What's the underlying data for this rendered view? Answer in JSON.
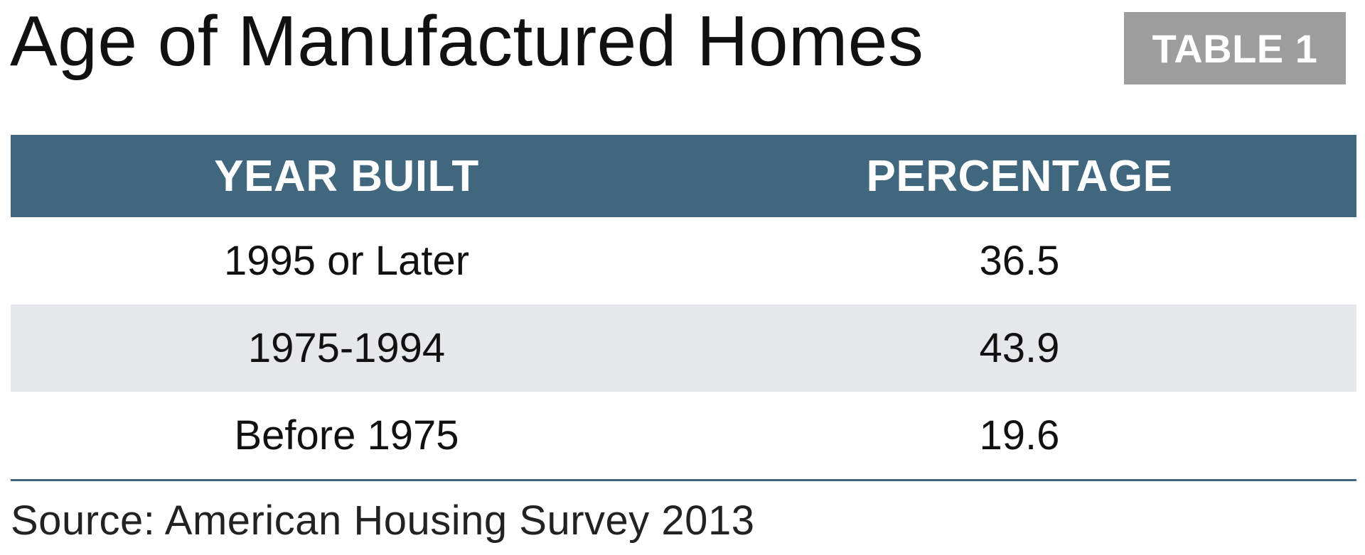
{
  "title": "Age of Manufactured Homes",
  "badge": "TABLE 1",
  "colors": {
    "header_bg": "#41677f",
    "badge_bg": "#9d9d9d",
    "alt_row_bg": "#e6e7eb"
  },
  "chart_data": {
    "type": "table",
    "title": "Age of Manufactured Homes",
    "columns": [
      "YEAR BUILT",
      "PERCENTAGE"
    ],
    "rows": [
      [
        "1995 or Later",
        "36.5"
      ],
      [
        "1975-1994",
        "43.9"
      ],
      [
        "Before 1975",
        "19.6"
      ]
    ],
    "source": "Source: American Housing Survey 2013"
  }
}
